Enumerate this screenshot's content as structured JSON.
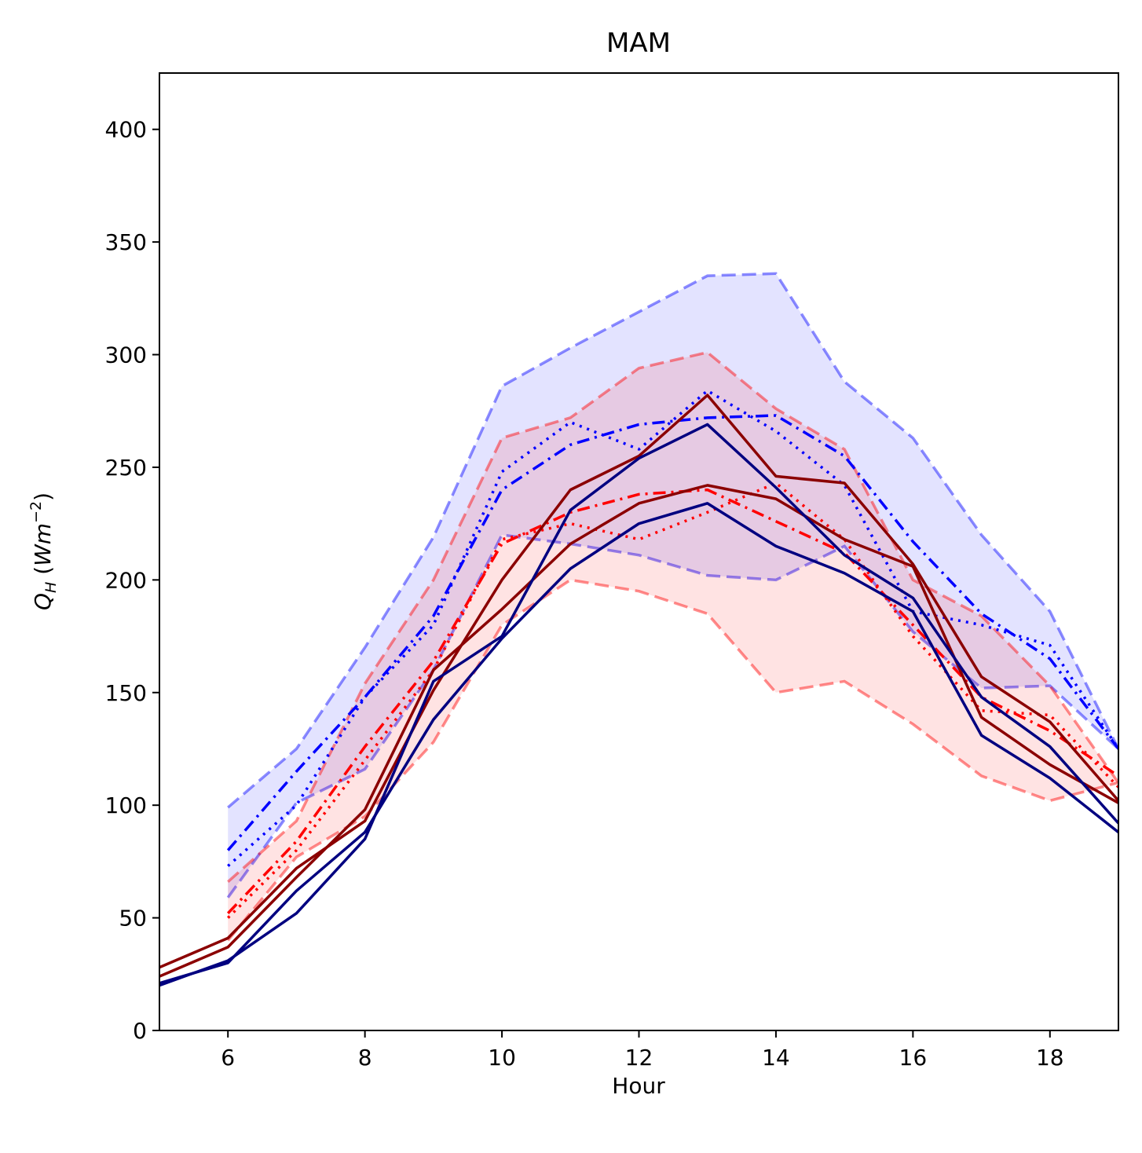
{
  "chart_data": {
    "type": "line",
    "title": "MAM",
    "xlabel": "Hour",
    "ylabel": {
      "main": "Q",
      "sub": "H",
      "unit_open": " (",
      "unit_var": "Wm",
      "unit_exp": "−2",
      "unit_close": ")"
    },
    "xlim": [
      5,
      19
    ],
    "ylim": [
      0,
      425
    ],
    "xticks": [
      6,
      8,
      10,
      12,
      14,
      16,
      18
    ],
    "yticks": [
      0,
      50,
      100,
      150,
      200,
      250,
      300,
      350,
      400
    ],
    "grid": false,
    "colors": {
      "blue": "#0000ff",
      "red": "#ff0000",
      "navy": "#000080",
      "darkred": "#8b0000"
    },
    "bands": [
      {
        "color": "#0000ff",
        "x": [
          6,
          7,
          8,
          9,
          10,
          11,
          12,
          13,
          14,
          15,
          16,
          17,
          18,
          19
        ],
        "upper": [
          99,
          125,
          170,
          219,
          286,
          303,
          319,
          335,
          336,
          288,
          263,
          220,
          186,
          125
        ],
        "lower": [
          59,
          101,
          116,
          160,
          220,
          216,
          211,
          202,
          200,
          215,
          177,
          152,
          153,
          125
        ]
      },
      {
        "color": "#ff0000",
        "x": [
          6,
          7,
          8,
          9,
          10,
          11,
          12,
          13,
          14,
          15,
          16,
          17,
          18,
          19
        ],
        "upper": [
          66,
          93,
          154,
          200,
          263,
          272,
          294,
          301,
          276,
          258,
          200,
          184,
          153,
          110
        ],
        "lower": [
          40,
          77,
          95,
          128,
          180,
          200,
          195,
          185,
          150,
          155,
          136,
          113,
          102,
          110
        ]
      }
    ],
    "series": [
      {
        "color": "#0000ff",
        "dash": "dashdot",
        "x": [
          6,
          7,
          8,
          9,
          10,
          11,
          12,
          13,
          14,
          15,
          16,
          17,
          18,
          19
        ],
        "values": [
          80,
          115,
          148,
          184,
          240,
          260,
          269,
          272,
          273,
          255,
          217,
          185,
          165,
          125
        ]
      },
      {
        "color": "#0000ff",
        "dash": "dotted",
        "x": [
          6,
          7,
          8,
          9,
          10,
          11,
          12,
          13,
          14,
          15,
          16,
          17,
          18,
          19
        ],
        "values": [
          73,
          100,
          148,
          180,
          248,
          270,
          258,
          284,
          266,
          242,
          186,
          180,
          171,
          125
        ]
      },
      {
        "color": "#ff0000",
        "dash": "dashdot",
        "x": [
          6,
          7,
          8,
          9,
          10,
          11,
          12,
          13,
          14,
          15,
          16,
          17,
          18,
          19
        ],
        "values": [
          52,
          84,
          126,
          164,
          216,
          230,
          238,
          240,
          226,
          212,
          180,
          148,
          133,
          113
        ]
      },
      {
        "color": "#ff0000",
        "dash": "dotted",
        "x": [
          6,
          7,
          8,
          9,
          10,
          11,
          12,
          13,
          14,
          15,
          16,
          17,
          18,
          19
        ],
        "values": [
          50,
          80,
          120,
          160,
          218,
          225,
          218,
          230,
          243,
          218,
          175,
          142,
          140,
          108
        ]
      },
      {
        "color": "#8b0000",
        "dash": "solid",
        "x": [
          5,
          6,
          7,
          8,
          9,
          10,
          11,
          12,
          13,
          14,
          15,
          16,
          17,
          18,
          19
        ],
        "values": [
          28,
          41,
          72,
          93,
          151,
          200,
          240,
          255,
          282,
          246,
          243,
          207,
          157,
          137,
          102
        ]
      },
      {
        "color": "#8b0000",
        "dash": "solid",
        "x": [
          5,
          6,
          7,
          8,
          9,
          10,
          11,
          12,
          13,
          14,
          15,
          16,
          17,
          18,
          19
        ],
        "values": [
          24,
          37,
          68,
          98,
          160,
          187,
          216,
          234,
          242,
          236,
          218,
          206,
          139,
          118,
          101
        ]
      },
      {
        "color": "#000080",
        "dash": "solid",
        "x": [
          5,
          6,
          7,
          8,
          9,
          10,
          11,
          12,
          13,
          14,
          15,
          16,
          17,
          18,
          19
        ],
        "values": [
          20,
          31,
          52,
          85,
          155,
          175,
          231,
          254,
          269,
          241,
          211,
          192,
          148,
          126,
          92
        ]
      },
      {
        "color": "#000080",
        "dash": "solid",
        "x": [
          5,
          6,
          7,
          8,
          9,
          10,
          11,
          12,
          13,
          14,
          15,
          16,
          17,
          18,
          19
        ],
        "values": [
          21,
          30,
          62,
          88,
          138,
          174,
          205,
          225,
          234,
          215,
          203,
          186,
          131,
          112,
          88
        ]
      }
    ]
  }
}
